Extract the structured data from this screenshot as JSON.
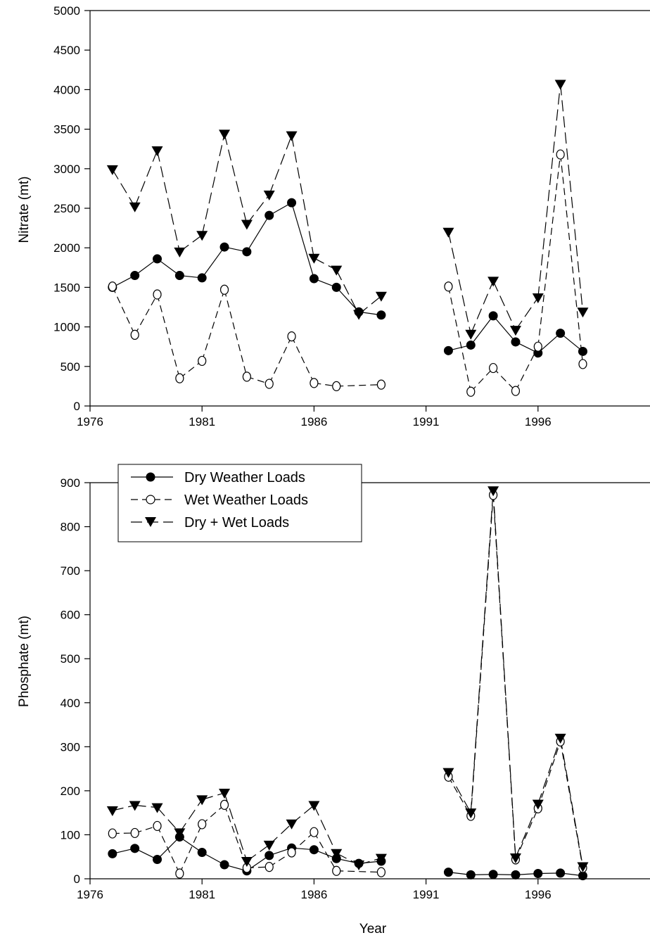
{
  "chart_data": [
    {
      "type": "line",
      "xlabel": "",
      "ylabel": "Nitrate (mt)",
      "xlim": [
        1976,
        2001
      ],
      "ylim": [
        0,
        5000
      ],
      "x_ticks": [
        "1976",
        "1981",
        "1986",
        "1991",
        "1996"
      ],
      "y_ticks": [
        "0",
        "500",
        "1000",
        "1500",
        "2000",
        "2500",
        "3000",
        "3500",
        "4000",
        "4500",
        "5000"
      ],
      "series": [
        {
          "name": "Dry Weather Loads",
          "x": [
            1977,
            1978,
            1979,
            1980,
            1981,
            1982,
            1983,
            1984,
            1985,
            1986,
            1987,
            1988,
            1989,
            1992,
            1993,
            1994,
            1995,
            1996,
            1997,
            1998
          ],
          "values": [
            1500,
            1650,
            1860,
            1650,
            1620,
            2010,
            1950,
            2410,
            2570,
            1610,
            1500,
            1190,
            1150,
            700,
            770,
            1140,
            810,
            670,
            920,
            690
          ]
        },
        {
          "name": "Wet Weather Loads",
          "x": [
            1977,
            1978,
            1979,
            1980,
            1981,
            1982,
            1983,
            1984,
            1985,
            1986,
            1987,
            1989,
            1992,
            1993,
            1994,
            1995,
            1996,
            1997,
            1998
          ],
          "values": [
            1510,
            900,
            1410,
            350,
            570,
            1470,
            370,
            280,
            880,
            290,
            250,
            270,
            1510,
            180,
            480,
            190,
            750,
            3180,
            530
          ]
        },
        {
          "name": "Dry + Wet Loads",
          "x": [
            1977,
            1978,
            1979,
            1980,
            1981,
            1982,
            1983,
            1984,
            1985,
            1986,
            1987,
            1988,
            1989,
            1992,
            1993,
            1994,
            1995,
            1996,
            1997,
            1998
          ],
          "values": [
            2990,
            2520,
            3230,
            1950,
            2160,
            3440,
            2300,
            2670,
            3420,
            1870,
            1720,
            1160,
            1390,
            2200,
            910,
            1580,
            960,
            1370,
            4070,
            1190
          ]
        }
      ]
    },
    {
      "type": "line",
      "xlabel": "Year",
      "ylabel": "Phosphate (mt)",
      "xlim": [
        1976,
        2001
      ],
      "ylim": [
        0,
        900
      ],
      "x_ticks": [
        "1976",
        "1981",
        "1986",
        "1991",
        "1996"
      ],
      "y_ticks": [
        "0",
        "100",
        "200",
        "300",
        "400",
        "500",
        "600",
        "700",
        "800",
        "900"
      ],
      "legend": {
        "position": "top-left",
        "entries": [
          "Dry Weather Loads",
          "Wet Weather Loads",
          "Dry + Wet Loads"
        ]
      },
      "series": [
        {
          "name": "Dry Weather Loads",
          "x": [
            1977,
            1978,
            1979,
            1980,
            1981,
            1982,
            1983,
            1984,
            1985,
            1986,
            1987,
            1988,
            1989,
            1992,
            1993,
            1994,
            1995,
            1996,
            1997,
            1998
          ],
          "values": [
            57,
            69,
            44,
            95,
            60,
            32,
            18,
            53,
            70,
            66,
            46,
            35,
            40,
            15,
            9,
            10,
            9,
            12,
            13,
            7
          ]
        },
        {
          "name": "Wet Weather Loads",
          "x": [
            1977,
            1978,
            1979,
            1980,
            1981,
            1982,
            1983,
            1984,
            1985,
            1986,
            1987,
            1989,
            1992,
            1993,
            1994,
            1995,
            1996,
            1997,
            1998
          ],
          "values": [
            103,
            104,
            120,
            12,
            124,
            168,
            25,
            27,
            60,
            106,
            18,
            15,
            232,
            143,
            872,
            44,
            160,
            312,
            25
          ]
        },
        {
          "name": "Dry + Wet Loads",
          "x": [
            1977,
            1978,
            1979,
            1980,
            1981,
            1982,
            1983,
            1984,
            1985,
            1986,
            1987,
            1988,
            1989,
            1992,
            1993,
            1994,
            1995,
            1996,
            1997,
            1998
          ],
          "values": [
            155,
            167,
            162,
            105,
            180,
            195,
            40,
            77,
            125,
            167,
            58,
            32,
            47,
            242,
            150,
            882,
            48,
            170,
            320,
            28
          ]
        }
      ]
    }
  ]
}
